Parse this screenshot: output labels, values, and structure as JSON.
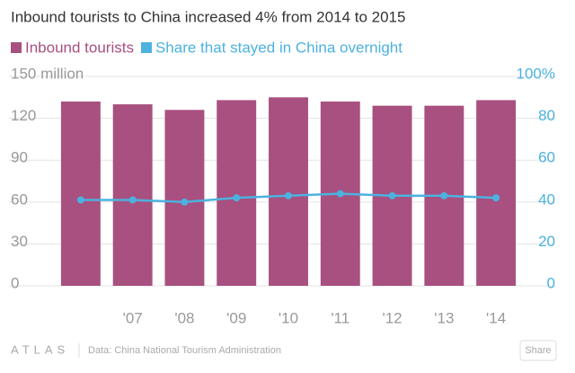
{
  "chart_data": {
    "type": "bar",
    "title": "Inbound tourists to China increased 4% from 2014 to 2015",
    "categories": [
      null,
      "'07",
      "'08",
      "'09",
      "'10",
      "'11",
      "'12",
      "'13",
      "'14"
    ],
    "series": [
      {
        "name": "Inbound tourists",
        "color": "#a8507f",
        "type": "bar",
        "values": [
          132,
          130,
          126,
          133,
          135,
          132,
          129,
          129,
          133
        ]
      },
      {
        "name": "Share that stayed in China overnight",
        "color": "#4cb2df",
        "type": "line",
        "axis": "y2",
        "values": [
          41,
          41,
          40,
          42,
          43,
          44,
          43,
          43,
          42
        ]
      }
    ],
    "ylim": [
      0,
      150
    ],
    "yticks": [
      0,
      30,
      60,
      90,
      120,
      {
        "value": 150,
        "label": "150 million"
      }
    ],
    "y2lim": [
      0,
      100
    ],
    "y2ticks": [
      0,
      20,
      40,
      60,
      80,
      {
        "value": 100,
        "label": "100%"
      }
    ],
    "grid": true
  },
  "footer": {
    "brand": "ATLAS",
    "source": "Data: China National Tourism Administration",
    "share": "Share"
  }
}
